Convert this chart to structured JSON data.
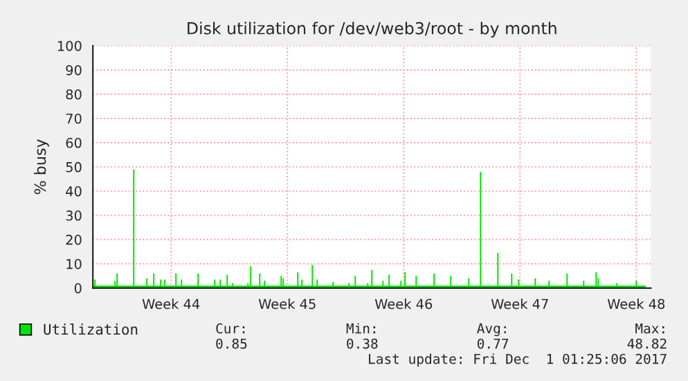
{
  "chart_data": {
    "type": "area",
    "title": "Disk utilization for /dev/web3/root - by month",
    "ylabel": "% busy",
    "xlim": [
      "2017-10-28T19:00",
      "2017-12-01T09:00"
    ],
    "xticks": [
      {
        "value": "2017-11-02T12:00",
        "label": "Week 44"
      },
      {
        "value": "2017-11-09T12:00",
        "label": "Week 45"
      },
      {
        "value": "2017-11-16T12:00",
        "label": "Week 46"
      },
      {
        "value": "2017-11-23T12:00",
        "label": "Week 47"
      },
      {
        "value": "2017-11-30T12:00",
        "label": "Week 48"
      }
    ],
    "ylim": [
      0,
      100
    ],
    "yticks": [
      0,
      10,
      20,
      30,
      40,
      50,
      60,
      70,
      80,
      90,
      100
    ],
    "grid": true,
    "legend": "bottom",
    "series": [
      {
        "name": "Utilization",
        "color": "#00e600",
        "x": [
          "2017-10-28T19:00",
          "2017-10-28T21:00",
          "2017-10-28T23:00",
          "2017-10-30T02:00",
          "2017-10-30T04:00",
          "2017-10-30T05:00",
          "2017-10-30T07:00",
          "2017-10-31T05:00",
          "2017-10-31T07:00",
          "2017-11-01T00:00",
          "2017-11-01T02:00",
          "2017-11-01T10:00",
          "2017-11-01T12:00",
          "2017-11-01T20:00",
          "2017-11-01T22:00",
          "2017-11-02T02:00",
          "2017-11-02T04:00",
          "2017-11-02T18:00",
          "2017-11-02T20:00",
          "2017-11-03T02:00",
          "2017-11-03T04:00",
          "2017-11-04T02:00",
          "2017-11-04T04:00",
          "2017-11-05T02:00",
          "2017-11-05T04:00",
          "2017-11-05T10:00",
          "2017-11-05T12:00",
          "2017-11-05T20:00",
          "2017-11-05T22:00",
          "2017-11-06T04:00",
          "2017-11-06T06:00",
          "2017-11-07T02:00",
          "2017-11-07T04:00",
          "2017-11-07T06:00",
          "2017-11-07T08:00",
          "2017-11-07T19:00",
          "2017-11-07T21:00",
          "2017-11-08T02:00",
          "2017-11-08T04:00",
          "2017-11-09T02:00",
          "2017-11-09T04:00",
          "2017-11-09T05:00",
          "2017-11-09T07:00",
          "2017-11-10T02:00",
          "2017-11-10T04:00",
          "2017-11-10T08:00",
          "2017-11-10T10:00",
          "2017-11-10T23:00",
          "2017-11-11T01:00",
          "2017-11-11T06:00",
          "2017-11-11T08:00",
          "2017-11-12T05:00",
          "2017-11-12T07:00",
          "2017-11-13T04:00",
          "2017-11-13T06:00",
          "2017-11-13T13:00",
          "2017-11-13T15:00",
          "2017-11-14T07:00",
          "2017-11-14T09:00",
          "2017-11-14T13:00",
          "2017-11-14T15:00",
          "2017-11-15T05:00",
          "2017-11-15T07:00",
          "2017-11-15T14:00",
          "2017-11-15T16:00",
          "2017-11-16T07:00",
          "2017-11-16T09:00",
          "2017-11-16T13:00",
          "2017-11-16T15:00",
          "2017-11-17T05:00",
          "2017-11-17T07:00",
          "2017-11-18T07:00",
          "2017-11-18T09:00",
          "2017-11-19T07:00",
          "2017-11-19T09:00",
          "2017-11-20T09:00",
          "2017-11-20T11:00",
          "2017-11-21T02:00",
          "2017-11-21T04:00",
          "2017-11-22T03:00",
          "2017-11-22T05:00",
          "2017-11-22T23:00",
          "2017-11-23T01:00",
          "2017-11-23T09:00",
          "2017-11-23T11:00",
          "2017-11-24T09:00",
          "2017-11-24T11:00",
          "2017-11-25T05:00",
          "2017-11-25T07:00",
          "2017-11-26T07:00",
          "2017-11-26T09:00",
          "2017-11-27T07:00",
          "2017-11-27T09:00",
          "2017-11-28T01:00",
          "2017-11-28T03:00",
          "2017-11-28T04:00",
          "2017-11-28T06:00",
          "2017-11-29T07:00",
          "2017-11-29T09:00",
          "2017-11-30T11:00",
          "2017-11-30T13:00",
          "2017-12-01T01:25"
        ],
        "values": [
          1,
          3.5,
          1,
          3,
          1,
          6,
          1,
          49,
          1,
          4,
          1,
          6,
          1,
          3.5,
          1,
          3.5,
          1,
          6,
          1,
          3.5,
          1,
          6,
          1,
          3.5,
          1,
          3.5,
          1,
          5.5,
          1,
          2,
          1,
          2,
          1,
          9,
          1,
          6,
          1,
          3,
          1,
          5,
          1,
          4,
          1,
          6.5,
          1,
          3.5,
          1,
          9.5,
          1,
          3.5,
          1,
          2.5,
          1,
          2,
          1,
          5,
          1,
          2,
          1,
          7.5,
          1,
          3,
          1,
          5.5,
          1,
          3,
          1,
          6.5,
          1,
          5,
          1,
          6,
          1,
          5,
          1,
          4,
          1,
          48,
          1,
          14.5,
          1,
          6,
          1,
          3.5,
          1,
          4,
          1,
          3,
          1,
          6,
          1,
          3,
          1,
          6.5,
          1,
          4,
          1,
          2,
          1,
          3,
          1,
          1
        ]
      }
    ],
    "annotations": [
      "Cur:",
      "Min:",
      "Avg:",
      "Max:",
      "0.85",
      "0.38",
      "0.77",
      "48.82",
      "Last update: Fri Dec  1 01:25:06 2017"
    ]
  }
}
